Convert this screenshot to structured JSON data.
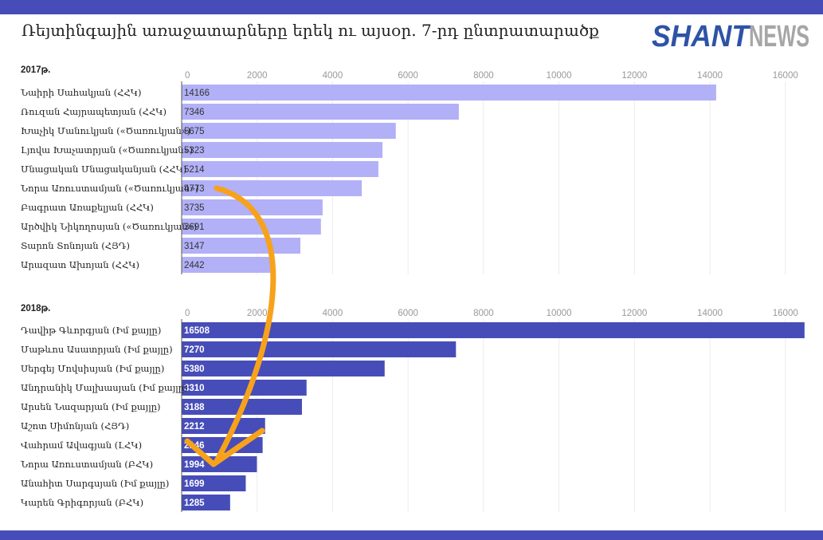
{
  "header": {
    "title": "Ռեյտինգային առաջատարները երեկ ու այսօր. 7-րդ ընտրատարածք"
  },
  "logo": {
    "text": "SHANTNEWS",
    "part1": "SHANT",
    "part2": "NEWS"
  },
  "colors": {
    "band": "#474db8",
    "bar_2017": "#b2b0f7",
    "bar_2018": "#474db8",
    "arrow": "#f7a21b",
    "logo_blue": "#2e53a6",
    "logo_gray": "#a6a6a6"
  },
  "chart_data": [
    {
      "type": "bar",
      "orientation": "horizontal",
      "title": "2017թ.",
      "xlim": [
        0,
        16500
      ],
      "ticks": [
        0,
        2000,
        4000,
        6000,
        8000,
        10000,
        12000,
        14000,
        16000
      ],
      "tick_labels": [
        "0",
        "2000",
        "4000",
        "6000",
        "8000",
        "10000",
        "12000",
        "14000",
        "16000"
      ],
      "categories": [
        "Նաիրի Սահակյան (ՀՀԿ)",
        "Ռուզան Հայրապետյան (ՀՀԿ)",
        "Խաչիկ Մանուկյան («Ծառուկյան»)",
        "Լյովա Խաչատրյան («Ծառուկյան»)",
        "Մնացական Մնացականյան (ՀՀԿ)",
        "Նորա Առուստամյան («Ծառուկյան»)",
        "Բագրատ Առաքելյան (ՀՀԿ)",
        "Արծվիկ Նիկողոսյան («Ծառուկյան»)",
        "Տարոն Տոնոյան (ՀՅԴ)",
        "Արազատ Ախոյան (ՀՀԿ)"
      ],
      "values": [
        14166,
        7346,
        5675,
        5323,
        5214,
        4773,
        3735,
        3691,
        3147,
        2442
      ],
      "value_labels": [
        "14166",
        "7346",
        "5675",
        "5323",
        "5214",
        "4773",
        "3735",
        "3691",
        "3147",
        "2442"
      ],
      "grid": true
    },
    {
      "type": "bar",
      "orientation": "horizontal",
      "title": "2018թ.",
      "xlim": [
        0,
        16500
      ],
      "ticks": [
        0,
        2000,
        4000,
        6000,
        8000,
        10000,
        12000,
        14000,
        16000
      ],
      "tick_labels": [
        "0",
        "2000",
        "4000",
        "6000",
        "8000",
        "10000",
        "12000",
        "14000",
        "16000"
      ],
      "categories": [
        "Դավիթ Գևորգյան (Իմ քայլը)",
        "Մաթևոս Ասատրյան (Իմ քայլը)",
        "Սերգեյ Մովսիսյան (Իմ քայլը)",
        "Անդրանիկ Մալխասյան (Իմ քայլը)",
        "Արսեն Նազարյան (Իմ քայլը)",
        "Աշոտ Սիմոնյան (ՀՅԴ)",
        "Վահրամ Ավագյան (ԼՀԿ)",
        "Նորա Առուստամյան (ԲՀԿ)",
        "Անահիտ Սարգսյան (Իմ քայլը)",
        "Կարեն Գրիգորյան (ԲՀԿ)"
      ],
      "values": [
        16508,
        7270,
        5380,
        3310,
        3188,
        2212,
        2146,
        1994,
        1699,
        1285
      ],
      "value_labels": [
        "16508",
        "7270",
        "5380",
        "3310",
        "3188",
        "2212",
        "2146",
        "1994",
        "1699",
        "1285"
      ],
      "grid": true
    }
  ]
}
